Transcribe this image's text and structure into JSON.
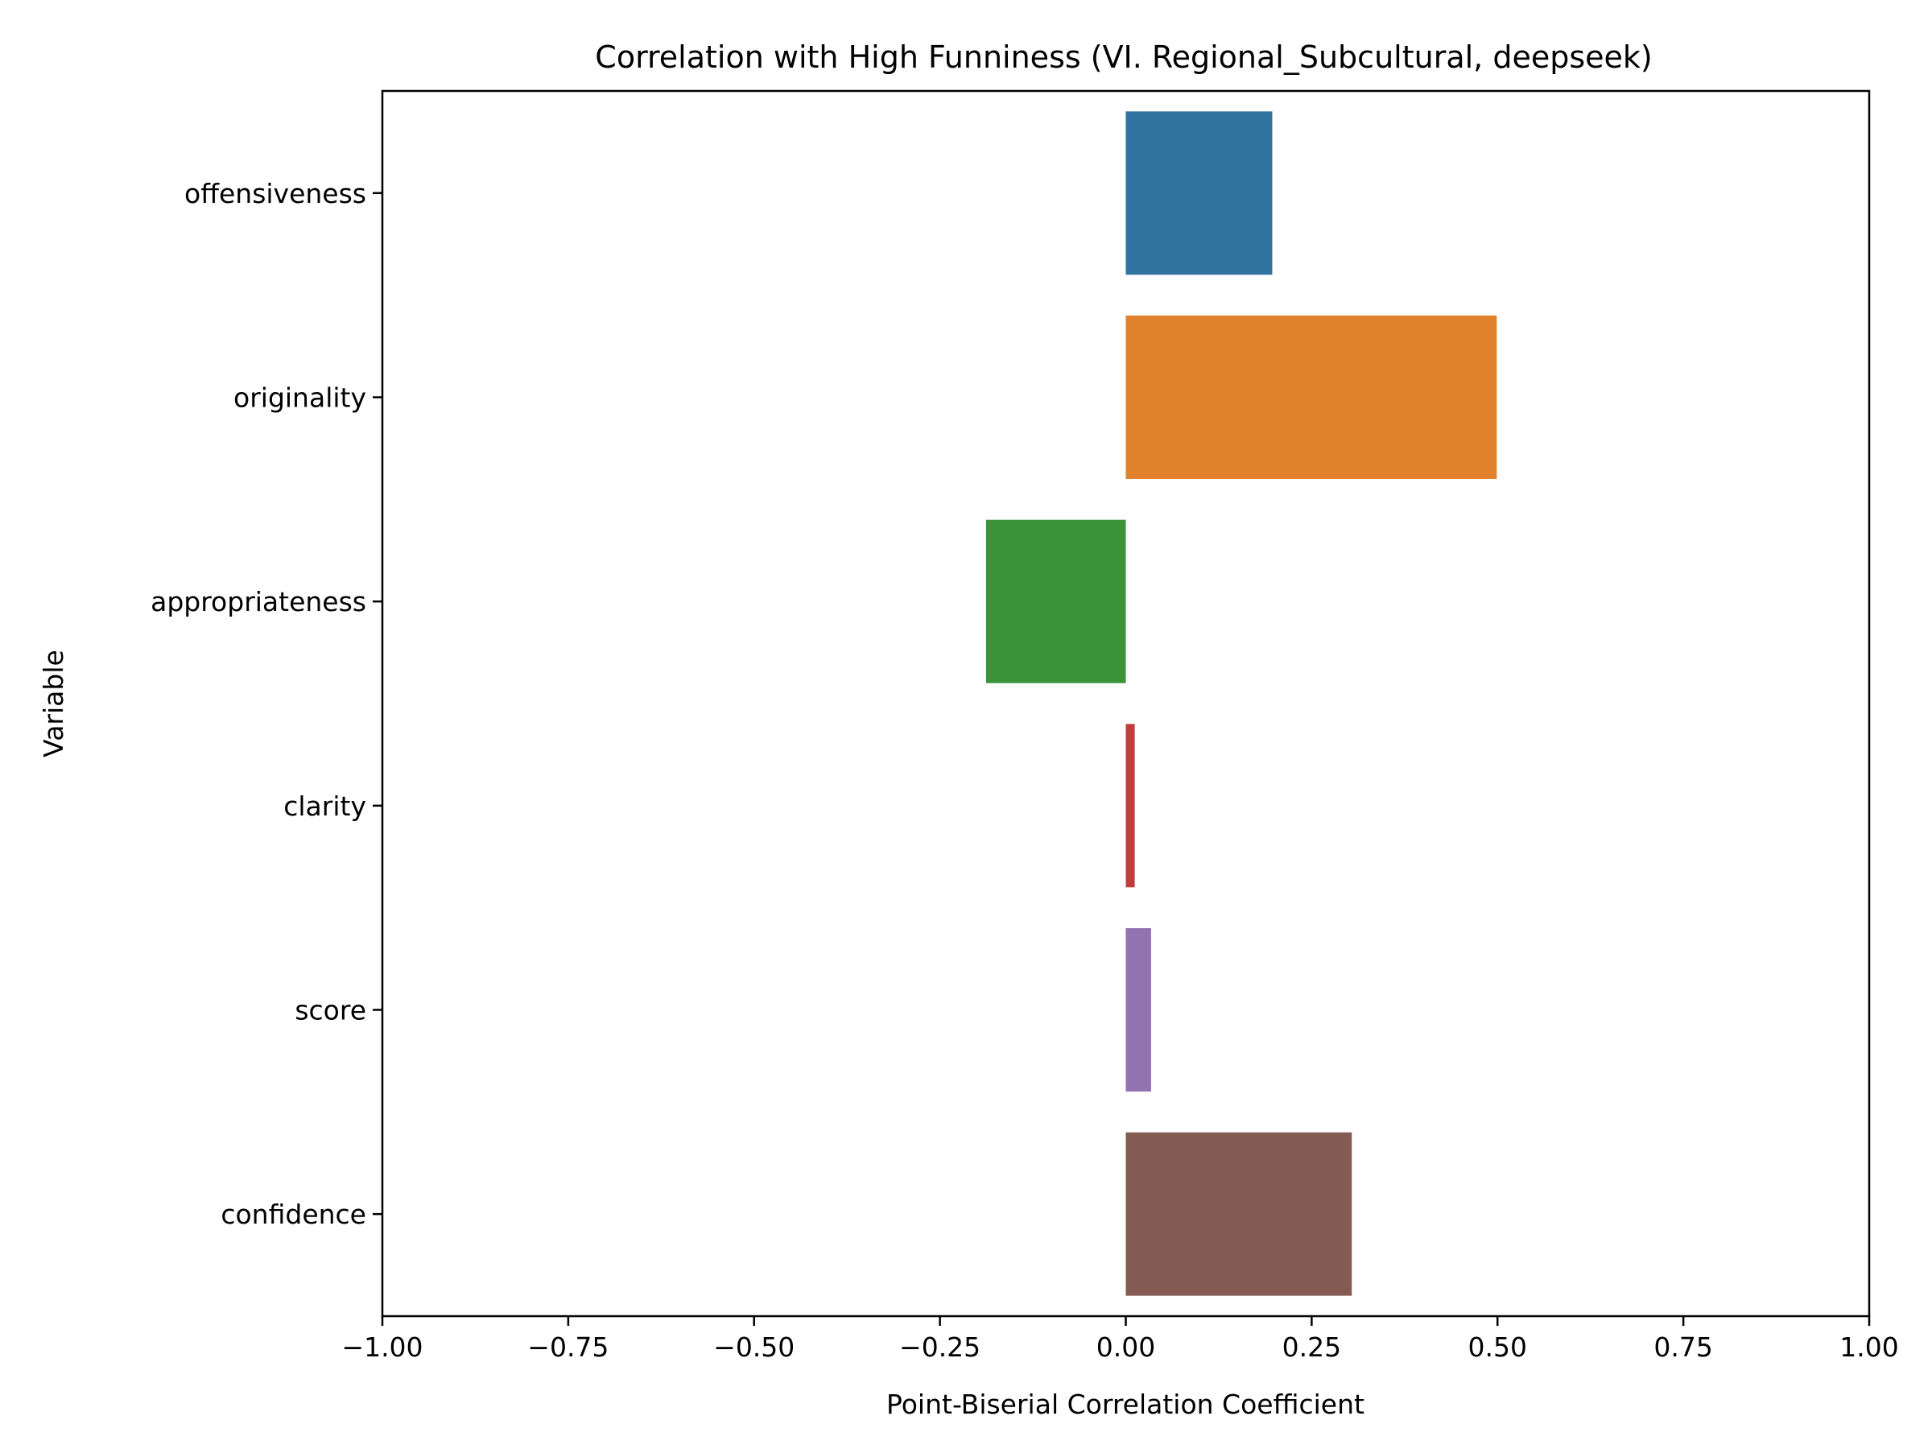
{
  "chart_data": {
    "type": "bar",
    "orientation": "horizontal",
    "title": "Correlation with High Funniness (VI. Regional_Subcultural, deepseek)",
    "xlabel": "Point-Biserial Correlation Coefficient",
    "ylabel": "Variable",
    "xlim": [
      -1.0,
      1.0
    ],
    "xticks": [
      -1.0,
      -0.75,
      -0.5,
      -0.25,
      0.0,
      0.25,
      0.5,
      0.75,
      1.0
    ],
    "xtick_labels": [
      "−1.00",
      "−0.75",
      "−0.50",
      "−0.25",
      "0.00",
      "0.25",
      "0.50",
      "0.75",
      "1.00"
    ],
    "categories": [
      "offensiveness",
      "originality",
      "appropriateness",
      "clarity",
      "score",
      "confidence"
    ],
    "values": [
      0.197,
      0.499,
      -0.188,
      0.012,
      0.034,
      0.304
    ],
    "colors": [
      "#3274a1",
      "#e1812c",
      "#3a923a",
      "#c03d3e",
      "#9372b2",
      "#845b53"
    ],
    "grid": false,
    "legend": "none"
  }
}
